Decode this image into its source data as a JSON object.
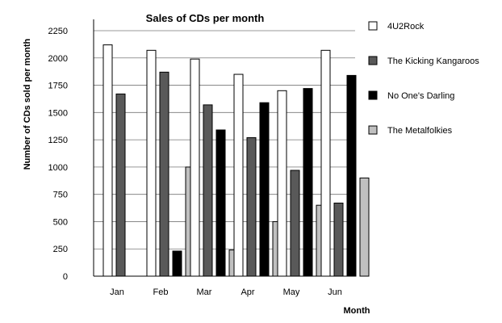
{
  "chart_data": {
    "type": "bar",
    "title": "Sales of CDs per month",
    "xlabel": "Month",
    "ylabel": "Number of CDs sold per month",
    "categories": [
      "Jan",
      "Feb",
      "Mar",
      "Apr",
      "May",
      "Jun"
    ],
    "ylim": [
      0,
      2250
    ],
    "yticks": [
      "0",
      "250",
      "500",
      "750",
      "1000",
      "1250",
      "1500",
      "1750",
      "2000",
      "2250"
    ],
    "grid": "horizontal",
    "legend_position": "right",
    "series": [
      {
        "name": "4U2Rock",
        "color": "#ffffff",
        "values": [
          2120,
          2070,
          1990,
          1850,
          1700,
          2070
        ]
      },
      {
        "name": "The Kicking Kangaroos",
        "color": "#595959",
        "values": [
          1670,
          1870,
          1570,
          1270,
          970,
          670
        ]
      },
      {
        "name": "No One's Darling",
        "color": "#000000",
        "values": [
          0,
          230,
          1340,
          1590,
          1720,
          1840
        ]
      },
      {
        "name": "The Metalfolkies",
        "color": "#c0c0c0",
        "values": [
          0,
          1000,
          240,
          500,
          650,
          900
        ]
      }
    ]
  }
}
